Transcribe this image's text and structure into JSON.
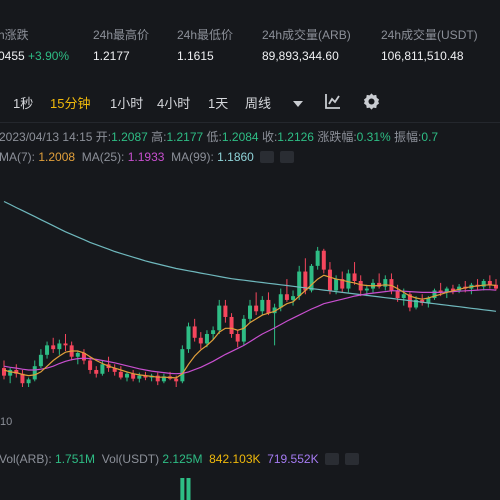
{
  "stats": [
    {
      "label": "h涨跌",
      "value": "0455",
      "change": "+3.90%"
    },
    {
      "label": "24h最高价",
      "value": "1.2177"
    },
    {
      "label": "24h最低价",
      "value": "1.1615"
    },
    {
      "label": "24h成交量(ARB)",
      "value": "89,893,344.60"
    },
    {
      "label": "24h成交量(USDT)",
      "value": "106,811,510.48"
    }
  ],
  "toolbar": {
    "intervals": [
      "1秒",
      "15分钟",
      "1小时",
      "4小时",
      "1天",
      "周线"
    ],
    "active_interval": "15分钟",
    "dropdown_icon": "caret-down-icon",
    "indicator_icon": "chart-indicator-icon",
    "settings_icon": "gear-icon"
  },
  "ohlc": {
    "datetime": "2023/04/13 14:15",
    "open_label": "开:",
    "open": "1.2087",
    "high_label": "高:",
    "high": "1.2177",
    "low_label": "低:",
    "low": "1.2084",
    "close_label": "收:",
    "close": "1.2126",
    "change_label": "涨跌幅:",
    "change": "0.31%",
    "amp_label": "振幅:",
    "amp": "0.7"
  },
  "ma": {
    "ma7_label": "MA(7):",
    "ma7": "1.2008",
    "ma25_label": "MA(25):",
    "ma25": "1.1933",
    "ma99_label": "MA(99):",
    "ma99": "1.1860"
  },
  "axis_fragment": "10",
  "volume": {
    "arb_label": "Vol(ARB):",
    "arb": "1.751M",
    "usdt_label": "Vol(USDT)",
    "usdt": "2.125M",
    "v1": "842.103K",
    "v2": "719.552K"
  },
  "colors": {
    "up": "#2ebd85",
    "down": "#f6465d",
    "ma7": "#e2a03b",
    "ma25": "#c84fcf",
    "ma99": "#6fb8bd",
    "accent": "#f0b90b",
    "background": "#16181c"
  },
  "chart_data": {
    "type": "candlestick",
    "ylim": [
      1.155,
      1.225
    ],
    "candles": [
      [
        1.174,
        1.176,
        1.171,
        1.172
      ],
      [
        1.172,
        1.174,
        1.17,
        1.1735
      ],
      [
        1.1735,
        1.175,
        1.1715,
        1.1725
      ],
      [
        1.1725,
        1.1735,
        1.169,
        1.17
      ],
      [
        1.17,
        1.1715,
        1.169,
        1.171
      ],
      [
        1.171,
        1.176,
        1.1705,
        1.1745
      ],
      [
        1.1745,
        1.179,
        1.174,
        1.1775
      ],
      [
        1.1775,
        1.181,
        1.1765,
        1.18
      ],
      [
        1.18,
        1.182,
        1.178,
        1.179
      ],
      [
        1.179,
        1.1815,
        1.1775,
        1.1805
      ],
      [
        1.1805,
        1.183,
        1.1785,
        1.18
      ],
      [
        1.18,
        1.181,
        1.176,
        1.177
      ],
      [
        1.177,
        1.1785,
        1.175,
        1.178
      ],
      [
        1.178,
        1.179,
        1.175,
        1.176
      ],
      [
        1.176,
        1.177,
        1.1725,
        1.1735
      ],
      [
        1.1735,
        1.1745,
        1.1715,
        1.1725
      ],
      [
        1.1725,
        1.176,
        1.172,
        1.175
      ],
      [
        1.175,
        1.177,
        1.173,
        1.174
      ],
      [
        1.174,
        1.175,
        1.172,
        1.173
      ],
      [
        1.173,
        1.1745,
        1.171,
        1.1715
      ],
      [
        1.1715,
        1.173,
        1.1705,
        1.1725
      ],
      [
        1.1725,
        1.1735,
        1.1705,
        1.1712
      ],
      [
        1.1712,
        1.1728,
        1.1702,
        1.172
      ],
      [
        1.172,
        1.173,
        1.1708,
        1.1715
      ],
      [
        1.1715,
        1.1725,
        1.1705,
        1.172
      ],
      [
        1.172,
        1.1728,
        1.1695,
        1.1705
      ],
      [
        1.1705,
        1.1725,
        1.17,
        1.1718
      ],
      [
        1.1718,
        1.173,
        1.1708,
        1.1712
      ],
      [
        1.1712,
        1.172,
        1.169,
        1.1705
      ],
      [
        1.1705,
        1.18,
        1.17,
        1.179
      ],
      [
        1.179,
        1.186,
        1.178,
        1.185
      ],
      [
        1.185,
        1.187,
        1.181,
        1.182
      ],
      [
        1.182,
        1.1835,
        1.179,
        1.1805
      ],
      [
        1.1805,
        1.184,
        1.1795,
        1.183
      ],
      [
        1.183,
        1.185,
        1.1815,
        1.184
      ],
      [
        1.184,
        1.192,
        1.183,
        1.1905
      ],
      [
        1.1905,
        1.192,
        1.186,
        1.1875
      ],
      [
        1.1875,
        1.1885,
        1.182,
        1.183
      ],
      [
        1.183,
        1.184,
        1.1795,
        1.181
      ],
      [
        1.181,
        1.188,
        1.18,
        1.187
      ],
      [
        1.187,
        1.192,
        1.186,
        1.1905
      ],
      [
        1.1905,
        1.194,
        1.188,
        1.189
      ],
      [
        1.189,
        1.193,
        1.188,
        1.192
      ],
      [
        1.192,
        1.194,
        1.188,
        1.1885
      ],
      [
        1.1885,
        1.191,
        1.18,
        1.19
      ],
      [
        1.19,
        1.195,
        1.189,
        1.1935
      ],
      [
        1.1935,
        1.1975,
        1.1915,
        1.192
      ],
      [
        1.192,
        1.1945,
        1.1905,
        1.193
      ],
      [
        1.193,
        1.201,
        1.192,
        1.1995
      ],
      [
        1.1995,
        1.203,
        1.1935,
        1.1945
      ],
      [
        1.1945,
        1.2015,
        1.194,
        1.201
      ],
      [
        1.201,
        1.206,
        1.2,
        1.205
      ],
      [
        1.205,
        1.2055,
        1.199,
        1.2
      ],
      [
        1.2,
        1.202,
        1.1935,
        1.1945
      ],
      [
        1.1945,
        1.1985,
        1.1935,
        1.1975
      ],
      [
        1.1975,
        1.1995,
        1.194,
        1.195
      ],
      [
        1.195,
        1.2,
        1.194,
        1.199
      ],
      [
        1.199,
        1.202,
        1.196,
        1.197
      ],
      [
        1.197,
        1.1985,
        1.193,
        1.1945
      ],
      [
        1.1945,
        1.196,
        1.193,
        1.195
      ],
      [
        1.195,
        1.1975,
        1.194,
        1.1965
      ],
      [
        1.1965,
        1.199,
        1.195,
        1.1955
      ],
      [
        1.1955,
        1.1985,
        1.1945,
        1.1975
      ],
      [
        1.1975,
        1.199,
        1.1935,
        1.1945
      ],
      [
        1.1945,
        1.196,
        1.1915,
        1.1925
      ],
      [
        1.1925,
        1.195,
        1.1905,
        1.1935
      ],
      [
        1.1935,
        1.194,
        1.189,
        1.19
      ],
      [
        1.19,
        1.193,
        1.1895,
        1.192
      ],
      [
        1.192,
        1.1935,
        1.1905,
        1.1912
      ],
      [
        1.1912,
        1.193,
        1.19,
        1.1925
      ],
      [
        1.1925,
        1.195,
        1.192,
        1.1945
      ],
      [
        1.1945,
        1.1965,
        1.193,
        1.194
      ],
      [
        1.194,
        1.1955,
        1.1925,
        1.195
      ],
      [
        1.195,
        1.196,
        1.1935,
        1.1945
      ],
      [
        1.1945,
        1.1962,
        1.1938,
        1.1955
      ],
      [
        1.1955,
        1.197,
        1.194,
        1.195
      ],
      [
        1.195,
        1.1965,
        1.1935,
        1.196
      ],
      [
        1.196,
        1.1975,
        1.1945,
        1.1955
      ],
      [
        1.1955,
        1.1975,
        1.1945,
        1.197
      ],
      [
        1.197,
        1.1985,
        1.195,
        1.196
      ],
      [
        1.196,
        1.1975,
        1.1945,
        1.195
      ]
    ],
    "ma7": [
      1.1735,
      1.173,
      1.1728,
      1.1723,
      1.172,
      1.1722,
      1.173,
      1.1745,
      1.176,
      1.1772,
      1.1782,
      1.1785,
      1.1785,
      1.178,
      1.177,
      1.176,
      1.1752,
      1.1745,
      1.174,
      1.1735,
      1.173,
      1.1725,
      1.1722,
      1.172,
      1.1718,
      1.1716,
      1.1716,
      1.1715,
      1.1714,
      1.1725,
      1.175,
      1.1772,
      1.1788,
      1.18,
      1.1815,
      1.1835,
      1.1845,
      1.1845,
      1.184,
      1.1845,
      1.186,
      1.187,
      1.188,
      1.1885,
      1.189,
      1.19,
      1.191,
      1.1915,
      1.193,
      1.1945,
      1.196,
      1.1975,
      1.1985,
      1.198,
      1.1975,
      1.1972,
      1.1968,
      1.1965,
      1.196,
      1.1958,
      1.1957,
      1.1958,
      1.196,
      1.1958,
      1.195,
      1.194,
      1.193,
      1.1925,
      1.1922,
      1.1925,
      1.193,
      1.1935,
      1.194,
      1.1944,
      1.1948,
      1.1952,
      1.1955,
      1.1957,
      1.1959,
      1.196,
      1.1958
    ],
    "ma25": [
      1.1745,
      1.1742,
      1.174,
      1.1737,
      1.1735,
      1.1735,
      1.1737,
      1.174,
      1.1745,
      1.1752,
      1.1758,
      1.1762,
      1.1765,
      1.1766,
      1.1765,
      1.1763,
      1.176,
      1.1757,
      1.1754,
      1.175,
      1.1746,
      1.1742,
      1.1738,
      1.1735,
      1.1732,
      1.173,
      1.1728,
      1.1726,
      1.1725,
      1.1726,
      1.173,
      1.1736,
      1.1742,
      1.175,
      1.1758,
      1.1767,
      1.1776,
      1.1784,
      1.1792,
      1.18,
      1.181,
      1.182,
      1.183,
      1.1838,
      1.1846,
      1.1855,
      1.1864,
      1.1872,
      1.188,
      1.1888,
      1.1896,
      1.1903,
      1.191,
      1.1914,
      1.1918,
      1.1922,
      1.1926,
      1.193,
      1.1933,
      1.1936,
      1.1938,
      1.194,
      1.1942,
      1.1944,
      1.1944,
      1.1943,
      1.1942,
      1.1941,
      1.194,
      1.194,
      1.194,
      1.194,
      1.1941,
      1.1942,
      1.1943,
      1.1944,
      1.1945,
      1.1946,
      1.1947,
      1.1947,
      1.1946
    ],
    "ma99": [
      1.218,
      1.2172,
      1.2164,
      1.2156,
      1.2148,
      1.214,
      1.2132,
      1.2124,
      1.2116,
      1.2108,
      1.21,
      1.2093,
      1.2086,
      1.2079,
      1.2072,
      1.2066,
      1.206,
      1.2054,
      1.2048,
      1.2043,
      1.2038,
      1.2033,
      1.2028,
      1.2023,
      1.2019,
      1.2015,
      1.2011,
      1.2007,
      1.2003,
      1.2,
      1.1997,
      1.1994,
      1.1991,
      1.1988,
      1.1985,
      1.1982,
      1.1979,
      1.1976,
      1.1974,
      1.1972,
      1.197,
      1.1968,
      1.1966,
      1.1964,
      1.1962,
      1.196,
      1.1958,
      1.1956,
      1.1954,
      1.1952,
      1.195,
      1.1948,
      1.1946,
      1.1944,
      1.1942,
      1.194,
      1.1938,
      1.1936,
      1.1934,
      1.1932,
      1.193,
      1.1928,
      1.1926,
      1.1924,
      1.1922,
      1.192,
      1.1918,
      1.1916,
      1.1914,
      1.1912,
      1.191,
      1.1908,
      1.1906,
      1.1904,
      1.1902,
      1.19,
      1.1898,
      1.1896,
      1.1894,
      1.1892,
      1.189
    ],
    "volume_visible": [
      0,
      0,
      0,
      0,
      0,
      0,
      0,
      0,
      0,
      0,
      0,
      0,
      0,
      0,
      0,
      0,
      0,
      0,
      0,
      0,
      0,
      0,
      0,
      0,
      0,
      0,
      0,
      0,
      0,
      1,
      1,
      0,
      0,
      0,
      0,
      0,
      0,
      0,
      0,
      0,
      0,
      0,
      0,
      0,
      0,
      0,
      0,
      0,
      0,
      0,
      0,
      0,
      0,
      0,
      0,
      0,
      0,
      0,
      0,
      0,
      0,
      0,
      0,
      0,
      0,
      0,
      0,
      0,
      0,
      0,
      0,
      0,
      0,
      0,
      0,
      0,
      0,
      0,
      0,
      0,
      0
    ]
  }
}
